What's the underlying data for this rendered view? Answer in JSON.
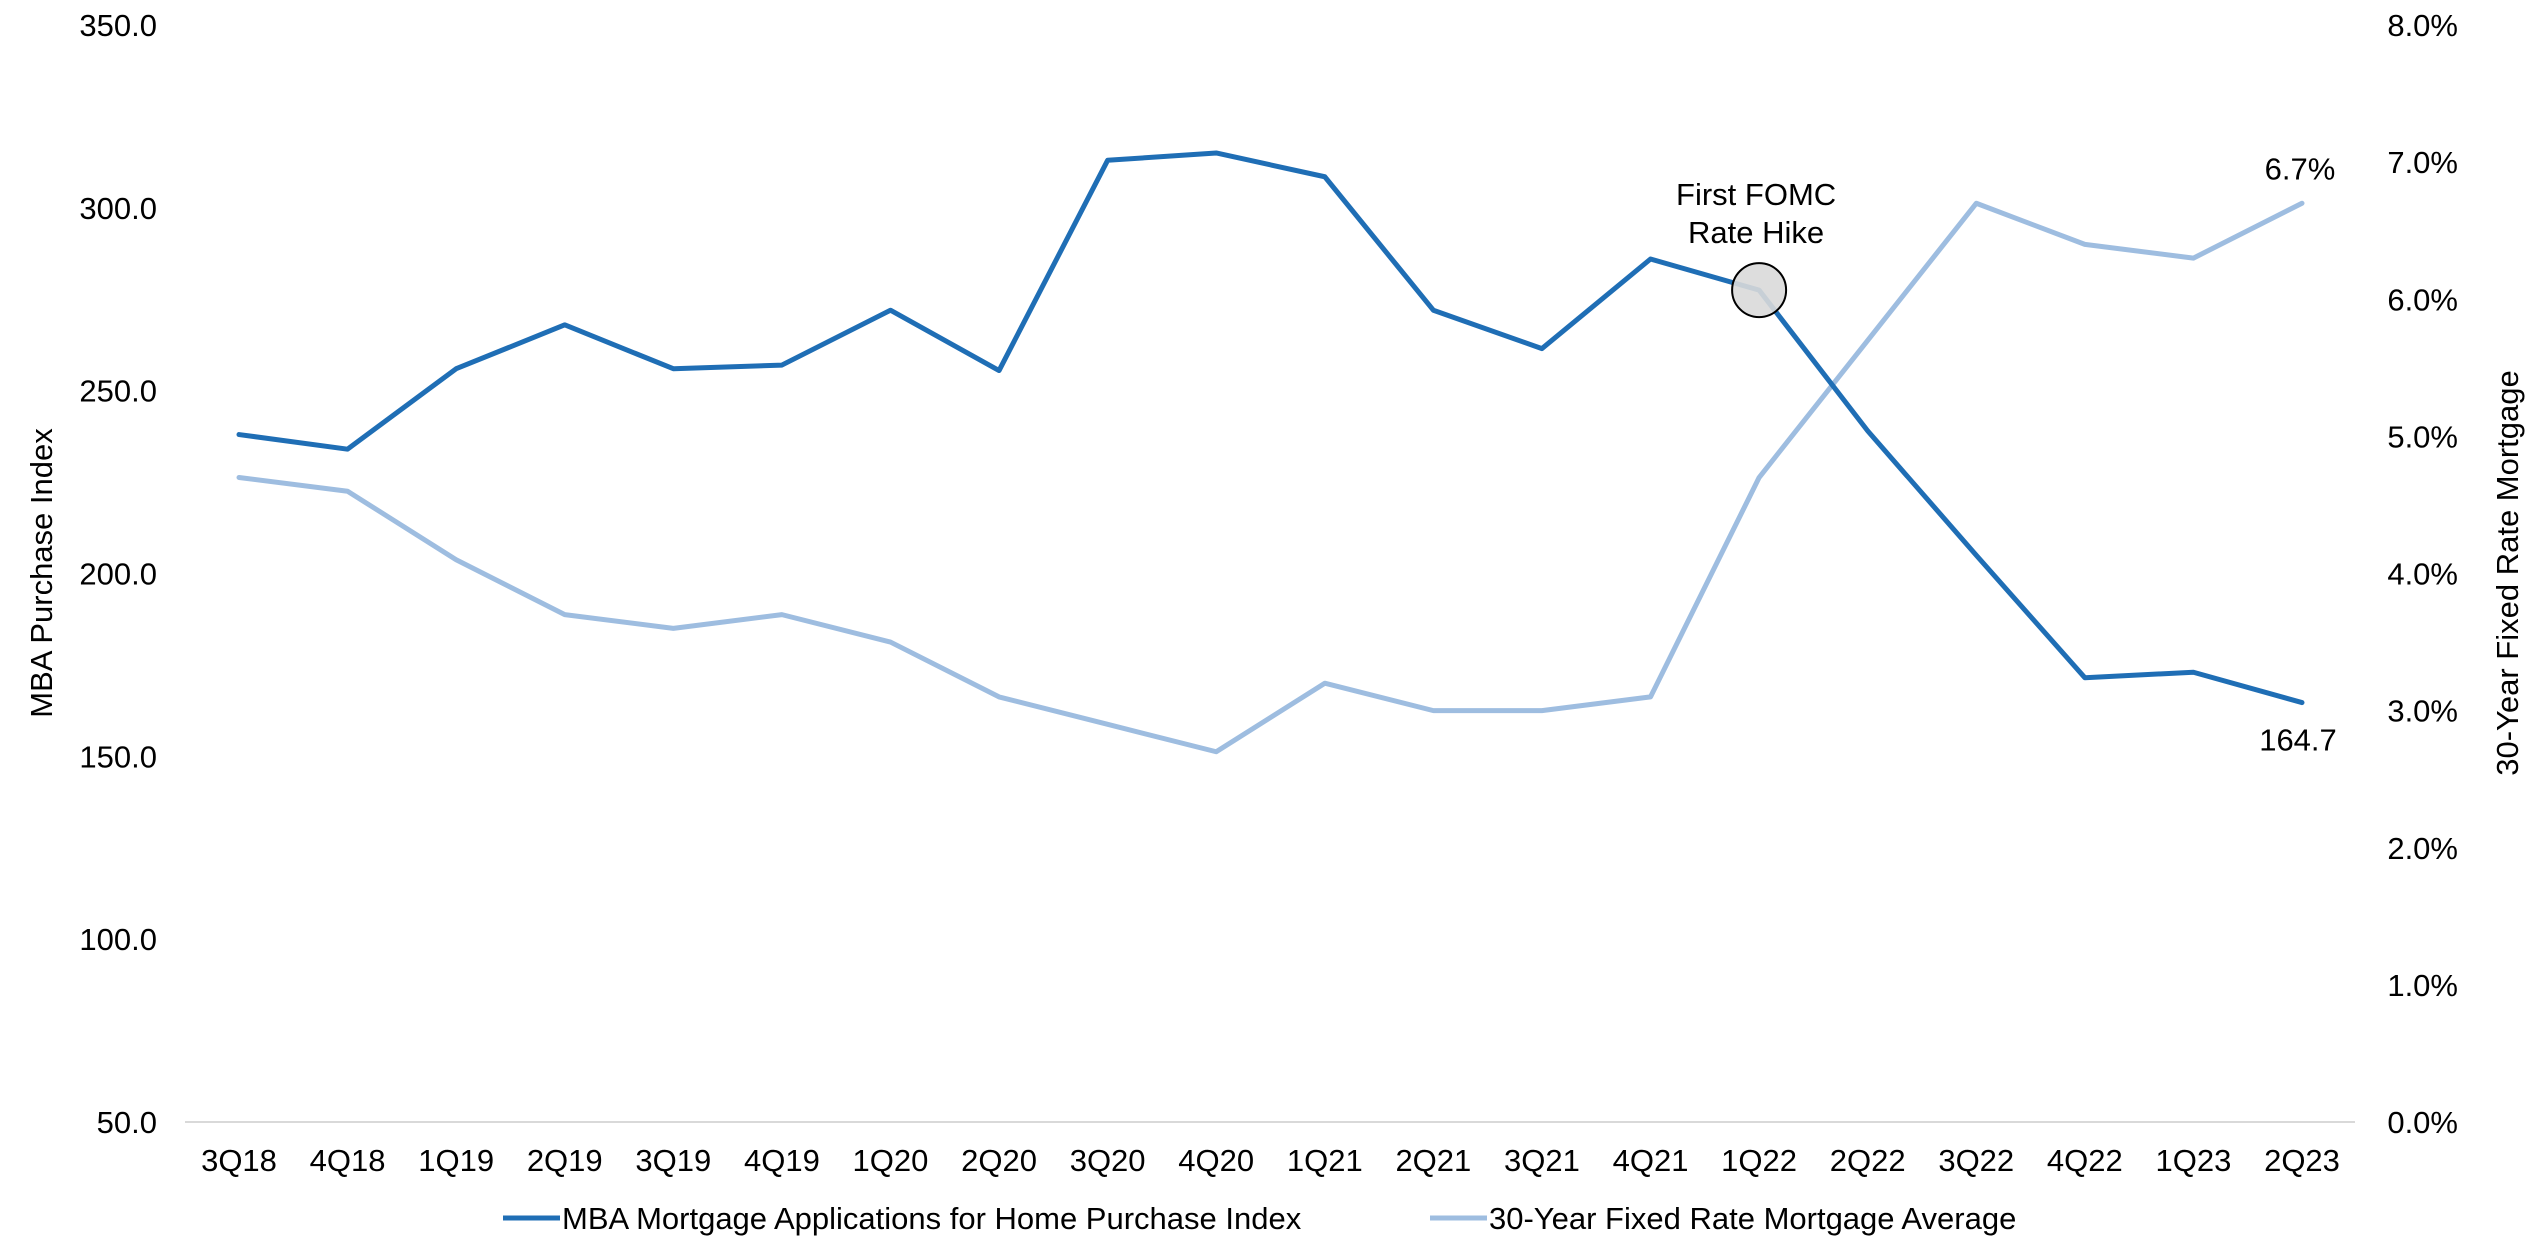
{
  "colors": {
    "series_dark": "#1f6eb5",
    "series_light": "#9ebde0",
    "axis_line": "#d9d9d9",
    "marker_fill": "#d9d9d9"
  },
  "chart_data": {
    "type": "line",
    "categories": [
      "3Q18",
      "4Q18",
      "1Q19",
      "2Q19",
      "3Q19",
      "4Q19",
      "1Q20",
      "2Q20",
      "3Q20",
      "4Q20",
      "1Q21",
      "2Q21",
      "3Q21",
      "4Q21",
      "1Q22",
      "2Q22",
      "3Q22",
      "4Q22",
      "1Q23",
      "2Q23"
    ],
    "left_axis": {
      "label": "MBA Purchase Index",
      "ylim": [
        50,
        350
      ],
      "ticks": [
        "50.0",
        "100.0",
        "150.0",
        "200.0",
        "250.0",
        "300.0",
        "350.0"
      ],
      "tick_values": [
        50,
        100,
        150,
        200,
        250,
        300,
        350
      ]
    },
    "right_axis": {
      "label": "30-Year Fixed Rate Mortgage",
      "ylim": [
        0,
        8
      ],
      "ticks": [
        "0.0%",
        "1.0%",
        "2.0%",
        "3.0%",
        "4.0%",
        "5.0%",
        "6.0%",
        "7.0%",
        "8.0%"
      ],
      "tick_values": [
        0,
        1,
        2,
        3,
        4,
        5,
        6,
        7,
        8
      ]
    },
    "series": [
      {
        "name": "MBA Mortgage Applications for Home Purchase Index",
        "axis": "left",
        "color": "#1f6eb5",
        "values": [
          238,
          234,
          256,
          268,
          256,
          257,
          272,
          255.5,
          313,
          315,
          308.5,
          272,
          261.5,
          286,
          277.5,
          239,
          205,
          171.5,
          173,
          164.7
        ]
      },
      {
        "name": "30-Year Fixed Rate Mortgage Average",
        "axis": "right",
        "color": "#9ebde0",
        "values": [
          4.7,
          4.6,
          4.1,
          3.7,
          3.6,
          3.7,
          3.5,
          3.1,
          2.9,
          2.7,
          3.2,
          3.0,
          3.0,
          3.1,
          4.7,
          5.7,
          6.7,
          6.4,
          6.3,
          6.7
        ]
      }
    ],
    "annotations": {
      "fomc_line1": "First FOMC",
      "fomc_line2": "Rate Hike",
      "fomc_category_index": 14,
      "last_index_label": "164.7",
      "last_rate_label": "6.7%"
    },
    "legend": "bottom-center",
    "grid": false
  }
}
